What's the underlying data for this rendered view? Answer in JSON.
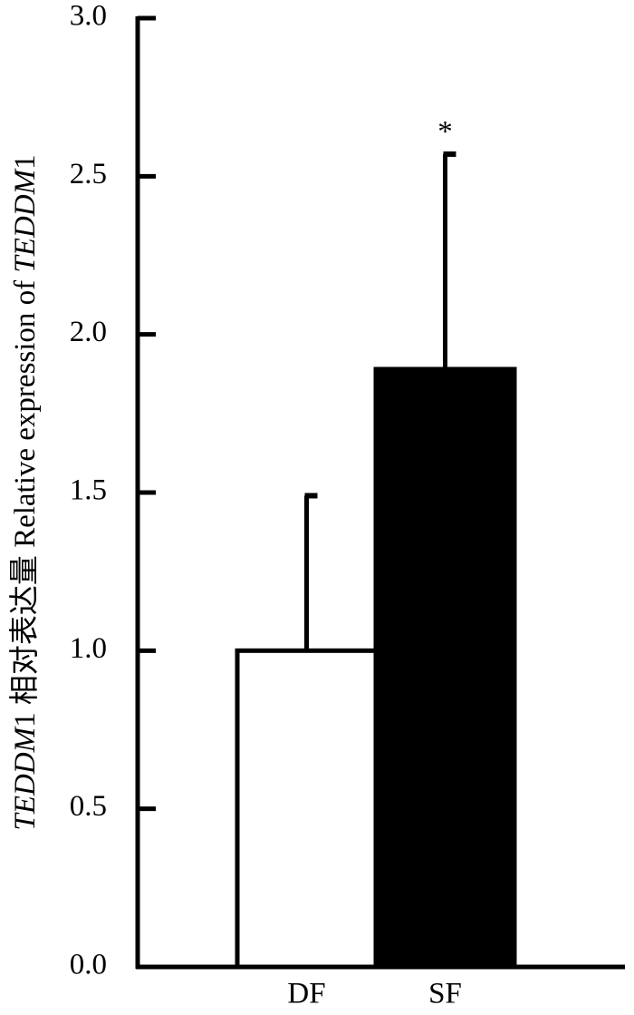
{
  "chart_data": {
    "type": "bar",
    "ylabel_parts": [
      {
        "text": "TEDDM",
        "italic": true
      },
      {
        "text": "1 相对表达量 Relative expression of ",
        "italic": false
      },
      {
        "text": "TEDDM",
        "italic": true
      },
      {
        "text": "1",
        "italic": false
      }
    ],
    "categories": [
      "DF",
      "SF"
    ],
    "values": [
      1.0,
      1.89
    ],
    "errors": [
      0.49,
      0.68
    ],
    "colors": [
      "#ffffff",
      "#000000"
    ],
    "annotations": [
      {
        "text": "*",
        "category": "SF"
      }
    ],
    "ylim": [
      0,
      3
    ],
    "yticks": [
      {
        "value": 0,
        "label": "0.0"
      },
      0.5,
      {
        "value": 1,
        "label": "1.0"
      },
      1.5,
      {
        "value": 2,
        "label": "2.0"
      },
      2.5,
      {
        "value": 3,
        "label": "3.0"
      }
    ]
  }
}
